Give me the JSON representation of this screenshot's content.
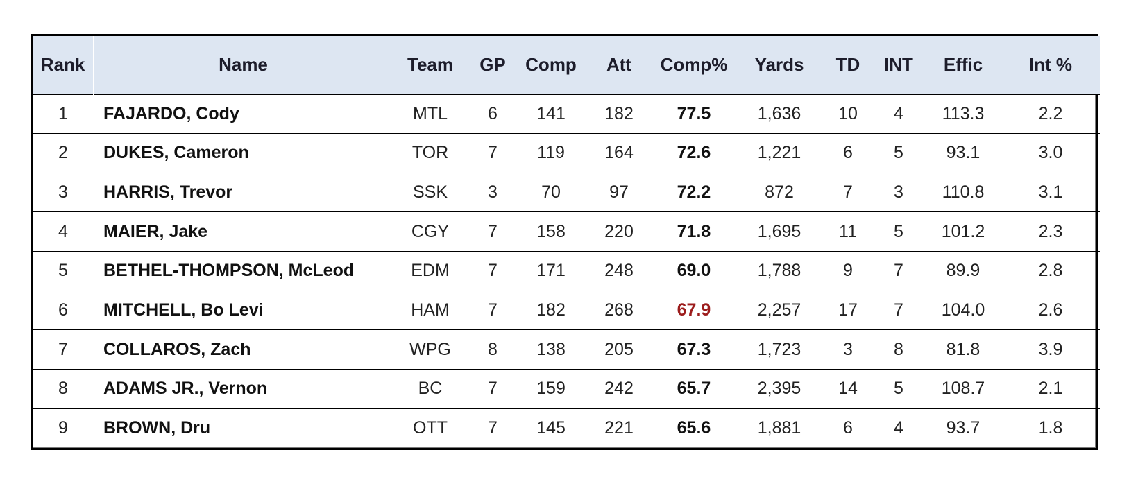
{
  "chart_data": {
    "type": "table",
    "columns": [
      "Rank",
      "Name",
      "Team",
      "GP",
      "Comp",
      "Att",
      "Comp%",
      "Yards",
      "TD",
      "INT",
      "Effic",
      "Int %"
    ],
    "rows": [
      [
        "1",
        "FAJARDO, Cody",
        "MTL",
        "6",
        "141",
        "182",
        "77.5",
        "1,636",
        "10",
        "4",
        "113.3",
        "2.2"
      ],
      [
        "2",
        "DUKES, Cameron",
        "TOR",
        "7",
        "119",
        "164",
        "72.6",
        "1,221",
        "6",
        "5",
        "93.1",
        "3.0"
      ],
      [
        "3",
        "HARRIS, Trevor",
        "SSK",
        "3",
        "70",
        "97",
        "72.2",
        "872",
        "7",
        "3",
        "110.8",
        "3.1"
      ],
      [
        "4",
        "MAIER, Jake",
        "CGY",
        "7",
        "158",
        "220",
        "71.8",
        "1,695",
        "11",
        "5",
        "101.2",
        "2.3"
      ],
      [
        "5",
        "BETHEL-THOMPSON, McLeod",
        "EDM",
        "7",
        "171",
        "248",
        "69.0",
        "1,788",
        "9",
        "7",
        "89.9",
        "2.8"
      ],
      [
        "6",
        "MITCHELL, Bo Levi",
        "HAM",
        "7",
        "182",
        "268",
        "67.9",
        "2,257",
        "17",
        "7",
        "104.0",
        "2.6"
      ],
      [
        "7",
        "COLLAROS, Zach",
        "WPG",
        "8",
        "138",
        "205",
        "67.3",
        "1,723",
        "3",
        "8",
        "81.8",
        "3.9"
      ],
      [
        "8",
        "ADAMS JR., Vernon",
        "BC",
        "7",
        "159",
        "242",
        "65.7",
        "2,395",
        "14",
        "5",
        "108.7",
        "2.1"
      ],
      [
        "9",
        "BROWN, Dru",
        "OTT",
        "7",
        "145",
        "221",
        "65.6",
        "1,881",
        "6",
        "4",
        "93.7",
        "1.8"
      ]
    ],
    "highlighted_row_index": 5,
    "highlight_color": "#9c1c1c",
    "header_background": "#dde6f2"
  }
}
